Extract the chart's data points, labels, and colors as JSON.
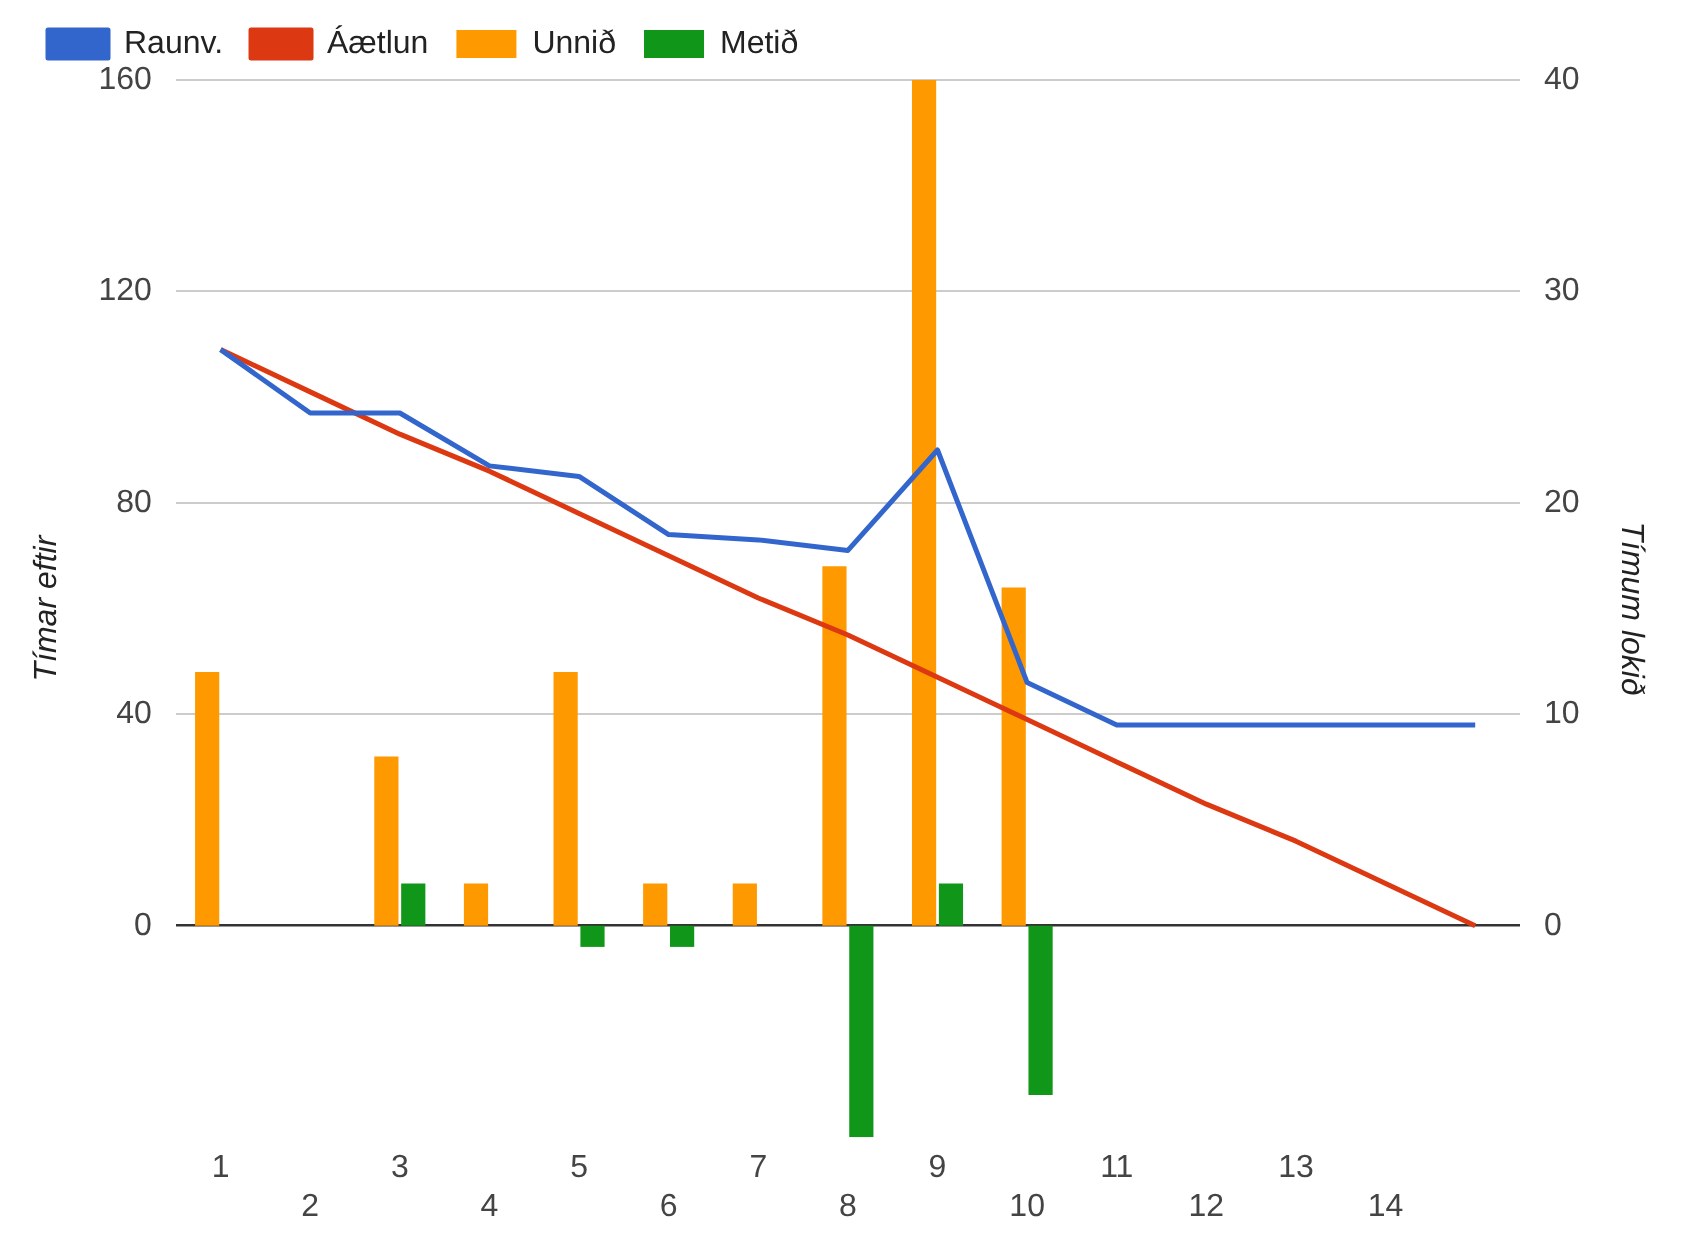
{
  "chart_data": {
    "type": "bar",
    "ylabel": "Tímar eftir",
    "y2label": "Tímum lokið",
    "categories": [
      "1",
      "2",
      "3",
      "4",
      "5",
      "6",
      "7",
      "8",
      "9",
      "10",
      "11",
      "12",
      "13",
      "14",
      null
    ],
    "series": [
      {
        "name": "Raunv.",
        "type": "line",
        "color": "#3366cc",
        "values": [
          109,
          97,
          97,
          87,
          85,
          74,
          73,
          71,
          90,
          46,
          38,
          38,
          38,
          38,
          38
        ]
      },
      {
        "name": "Áætlun",
        "type": "line",
        "color": "#dc3912",
        "values": [
          109,
          101,
          93,
          86,
          78,
          70,
          62,
          55,
          47,
          39,
          31,
          23,
          16,
          8,
          0
        ]
      },
      {
        "name": "Unnið",
        "axis": "y2",
        "color": "#ff9900",
        "values": [
          12,
          null,
          8,
          2,
          12,
          2,
          2,
          17,
          40,
          16,
          null,
          null,
          null,
          null,
          null
        ]
      },
      {
        "name": "Metið",
        "axis": "y2",
        "color": "#109618",
        "values": [
          null,
          null,
          2,
          null,
          -1,
          -1,
          null,
          -10,
          2,
          -8,
          null,
          null,
          null,
          null,
          null
        ]
      }
    ],
    "ylim": [
      -40,
      160
    ],
    "yticks": [
      0,
      40,
      80,
      120,
      160
    ],
    "y2lim": [
      -10,
      40
    ],
    "y2ticks": [
      0,
      10,
      20,
      30,
      40
    ],
    "grid": "y",
    "legend": "top left",
    "marker": "none",
    "line_style": "solid"
  }
}
